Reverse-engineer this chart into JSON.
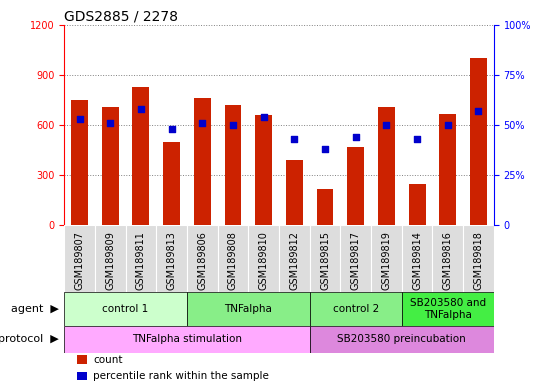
{
  "title": "GDS2885 / 2278",
  "samples": [
    "GSM189807",
    "GSM189809",
    "GSM189811",
    "GSM189813",
    "GSM189806",
    "GSM189808",
    "GSM189810",
    "GSM189812",
    "GSM189815",
    "GSM189817",
    "GSM189819",
    "GSM189814",
    "GSM189816",
    "GSM189818"
  ],
  "counts": [
    750,
    710,
    830,
    500,
    760,
    720,
    660,
    390,
    220,
    470,
    710,
    250,
    670,
    1000
  ],
  "percentiles": [
    53,
    51,
    58,
    48,
    51,
    50,
    54,
    43,
    38,
    44,
    50,
    43,
    50,
    57
  ],
  "ylim_left": [
    0,
    1200
  ],
  "ylim_right": [
    0,
    100
  ],
  "yticks_left": [
    0,
    300,
    600,
    900,
    1200
  ],
  "yticks_right": [
    0,
    25,
    50,
    75,
    100
  ],
  "bar_color": "#cc2200",
  "dot_color": "#0000cc",
  "agent_groups": [
    {
      "label": "control 1",
      "start": 0,
      "end": 4,
      "color": "#ccffcc"
    },
    {
      "label": "TNFalpha",
      "start": 4,
      "end": 8,
      "color": "#88ee88"
    },
    {
      "label": "control 2",
      "start": 8,
      "end": 11,
      "color": "#88ee88"
    },
    {
      "label": "SB203580 and\nTNFalpha",
      "start": 11,
      "end": 14,
      "color": "#44ee44"
    }
  ],
  "protocol_groups": [
    {
      "label": "TNFalpha stimulation",
      "start": 0,
      "end": 8,
      "color": "#ffaaff"
    },
    {
      "label": "SB203580 preincubation",
      "start": 8,
      "end": 14,
      "color": "#dd88dd"
    }
  ],
  "sample_box_color": "#dddddd",
  "left_axis_color": "red",
  "right_axis_color": "blue",
  "grid_color": "gray",
  "legend_items": [
    {
      "color": "#cc2200",
      "label": "count"
    },
    {
      "color": "#0000cc",
      "label": "percentile rank within the sample"
    }
  ],
  "title_fontsize": 10,
  "tick_fontsize": 7,
  "label_fontsize": 8,
  "bar_width": 0.55
}
